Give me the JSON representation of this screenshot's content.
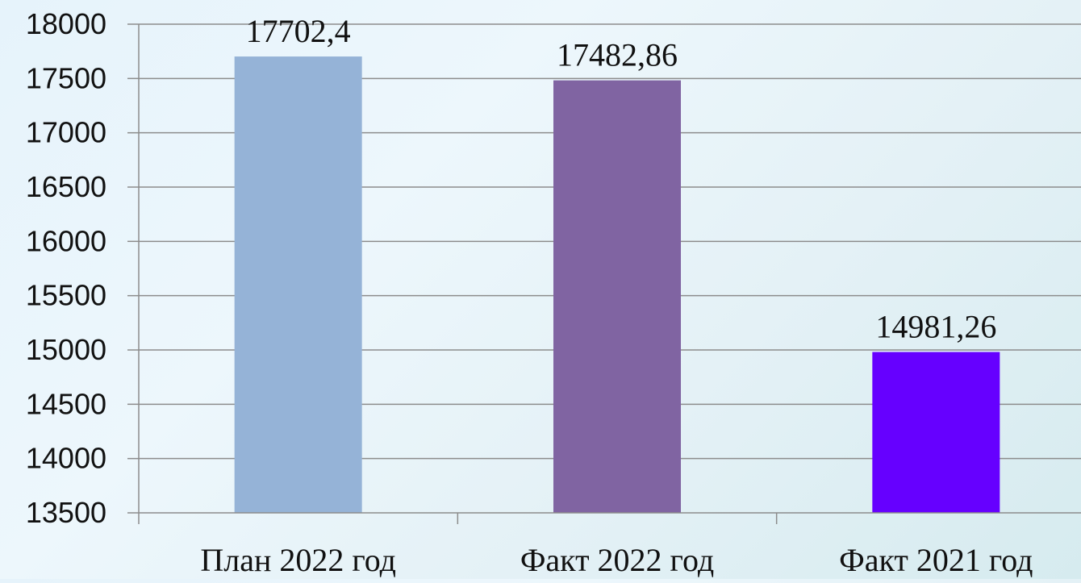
{
  "chart_data": {
    "type": "bar",
    "categories": [
      "План 2022 год",
      "Факт 2022 год",
      "Факт 2021 год"
    ],
    "values": [
      17702.4,
      17482.86,
      14981.26
    ],
    "value_labels": [
      "17702,4",
      "17482,86",
      "14981,26"
    ],
    "bar_colors": [
      "#95b3d7",
      "#8064a2",
      "#6600ff"
    ],
    "ylim": [
      13500,
      18000
    ],
    "y_ticks": [
      13500,
      14000,
      14500,
      15000,
      15500,
      16000,
      16500,
      17000,
      17500,
      18000
    ],
    "grid": true,
    "legend": "none",
    "title": "",
    "xlabel": "",
    "ylabel": ""
  },
  "colors": {
    "axis": "#8c8c8c",
    "grid": "#8c8c8c"
  }
}
